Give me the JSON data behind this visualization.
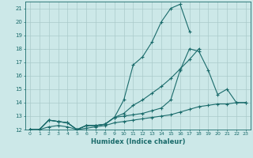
{
  "xlabel": "Humidex (Indice chaleur)",
  "background_color": "#cce8e8",
  "grid_color": "#aacaca",
  "line_color": "#1a6b6b",
  "xlim": [
    -0.5,
    23.5
  ],
  "ylim": [
    12,
    21.5
  ],
  "yticks": [
    12,
    13,
    14,
    15,
    16,
    17,
    18,
    19,
    20,
    21
  ],
  "xticks": [
    0,
    1,
    2,
    3,
    4,
    5,
    6,
    7,
    8,
    9,
    10,
    11,
    12,
    13,
    14,
    15,
    16,
    17,
    18,
    19,
    20,
    21,
    22,
    23
  ],
  "series": [
    {
      "x": [
        0,
        1,
        2,
        3,
        4,
        5,
        6,
        7,
        8,
        9,
        10,
        11,
        12,
        13,
        14,
        15,
        16,
        17,
        18,
        19,
        20,
        21,
        22,
        23
      ],
      "y": [
        12.0,
        12.0,
        12.7,
        12.6,
        12.5,
        12.0,
        12.3,
        12.3,
        12.4,
        12.9,
        14.2,
        16.8,
        17.4,
        18.5,
        20.0,
        21.0,
        21.3,
        19.3,
        null,
        null,
        null,
        null,
        null,
        null
      ]
    },
    {
      "x": [
        0,
        1,
        2,
        3,
        4,
        5,
        6,
        7,
        8,
        9,
        10,
        11,
        12,
        13,
        14,
        15,
        16,
        17,
        18,
        19,
        20,
        21,
        22,
        23
      ],
      "y": [
        12.0,
        12.0,
        12.7,
        12.6,
        12.5,
        12.0,
        12.3,
        12.3,
        12.4,
        12.9,
        13.2,
        13.8,
        14.2,
        14.7,
        15.2,
        15.8,
        16.5,
        17.2,
        18.0,
        null,
        null,
        null,
        null,
        null
      ]
    },
    {
      "x": [
        0,
        1,
        2,
        3,
        4,
        5,
        6,
        7,
        8,
        9,
        10,
        11,
        12,
        13,
        14,
        15,
        16,
        17,
        18,
        19,
        20,
        21,
        22,
        23
      ],
      "y": [
        12.0,
        12.0,
        12.7,
        12.6,
        12.5,
        12.0,
        12.3,
        12.3,
        12.4,
        12.9,
        13.0,
        13.1,
        13.2,
        13.4,
        13.6,
        14.2,
        16.4,
        18.0,
        17.8,
        16.4,
        14.6,
        15.0,
        14.0,
        14.0
      ]
    },
    {
      "x": [
        0,
        1,
        2,
        3,
        4,
        5,
        6,
        7,
        8,
        9,
        10,
        11,
        12,
        13,
        14,
        15,
        16,
        17,
        18,
        19,
        20,
        21,
        22,
        23
      ],
      "y": [
        12.0,
        12.0,
        12.2,
        12.3,
        12.2,
        12.0,
        12.1,
        12.2,
        12.3,
        12.5,
        12.6,
        12.7,
        12.8,
        12.9,
        13.0,
        13.1,
        13.3,
        13.5,
        13.7,
        13.8,
        13.9,
        13.9,
        14.0,
        14.0
      ]
    }
  ]
}
